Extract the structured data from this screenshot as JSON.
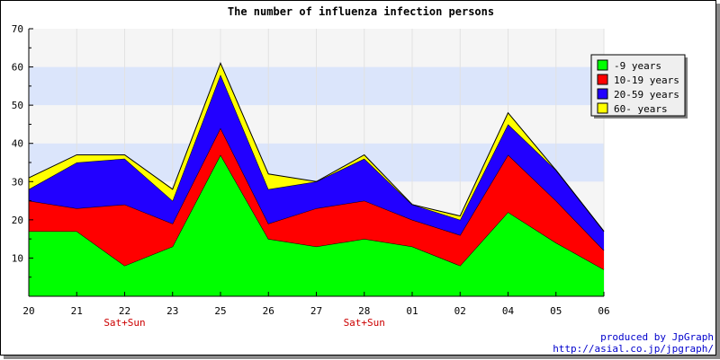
{
  "chart_data": {
    "type": "area",
    "stacked": true,
    "title": "The number of influenza infection persons",
    "categories": [
      "20",
      "21",
      "22",
      "23",
      "25",
      "26",
      "27",
      "28",
      "01",
      "02",
      "04",
      "05",
      "06"
    ],
    "category_notes": [
      "",
      "",
      "Sat+Sun",
      "",
      "",
      "",
      "",
      "Sat+Sun",
      "",
      "",
      "",
      "",
      ""
    ],
    "series": [
      {
        "name": "-9 years",
        "color": "#00ff00",
        "values": [
          17,
          17,
          8,
          13,
          37,
          15,
          13,
          15,
          13,
          8,
          22,
          14,
          7
        ]
      },
      {
        "name": "10-19 years",
        "color": "#ff0000",
        "values": [
          8,
          6,
          16,
          6,
          7,
          4,
          10,
          10,
          7,
          8,
          15,
          11,
          5
        ]
      },
      {
        "name": "20-59 years",
        "color": "#2200ff",
        "values": [
          3,
          12,
          12,
          6,
          14,
          9,
          7,
          11,
          4,
          4,
          8,
          8,
          5
        ]
      },
      {
        "name": "60- years",
        "color": "#ffff00",
        "values": [
          3,
          2,
          1,
          3,
          3,
          4,
          0,
          1,
          0,
          1,
          3,
          0,
          0
        ]
      }
    ],
    "ylim": [
      0,
      70
    ],
    "yticks": [
      10,
      20,
      30,
      40,
      50,
      60,
      70
    ],
    "bands": [
      [
        30,
        40,
        50,
        60,
        70
      ],
      [
        "#dbe5fb",
        "#f5f5f5",
        "#dbe5fb",
        "#f5f5f5"
      ]
    ],
    "grid": true,
    "legend_position": "top-right"
  },
  "credits": {
    "line1": "produced by JpGraph",
    "line2": "http://asial.co.jp/jpgraph/"
  }
}
